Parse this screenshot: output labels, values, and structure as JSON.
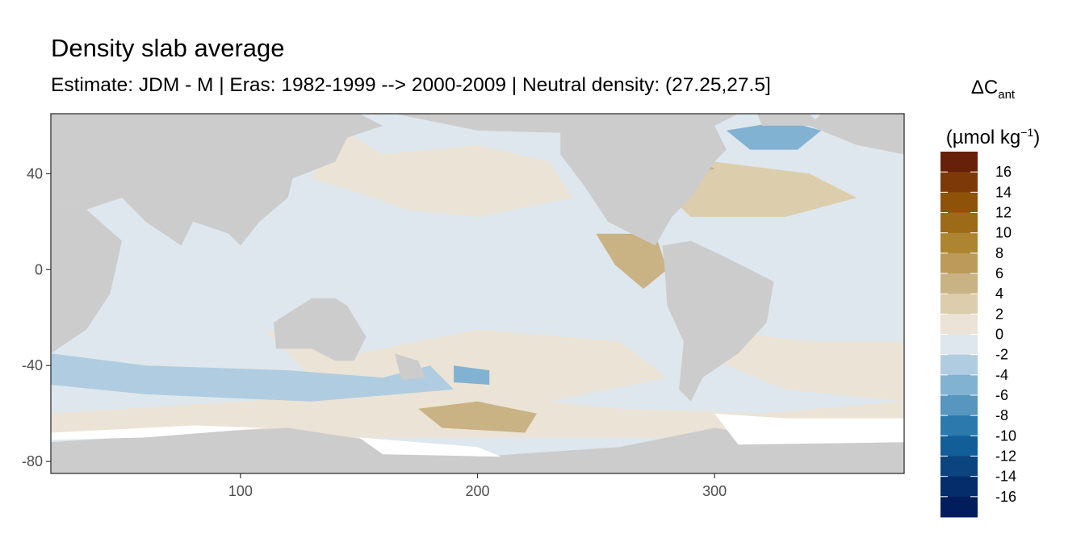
{
  "chart_data": {
    "type": "heatmap",
    "title": "Density slab average",
    "subtitle": "Estimate: JDM - M | Eras: 1982-1999 --> 2000-2009 | Neutral density: (27.25,27.5]",
    "xlabel": "",
    "ylabel": "",
    "xlim": [
      20,
      380
    ],
    "ylim": [
      -85,
      65
    ],
    "x_ticks": [
      "100",
      "200",
      "300"
    ],
    "y_ticks": [
      "40",
      "0",
      "-40",
      "-80"
    ],
    "x_tick_values": [
      100,
      200,
      300
    ],
    "y_tick_values": [
      40,
      0,
      -40,
      -80
    ],
    "grid": false,
    "legend": {
      "position": "right",
      "title": "ΔC",
      "title_sub": "ant",
      "unit_prefix": "(µmol kg",
      "unit_sup": "−1",
      "unit_suffix": ")",
      "labels": [
        "16",
        "14",
        "12",
        "10",
        "8",
        "6",
        "4",
        "2",
        "0",
        "-2",
        "-4",
        "-6",
        "-8",
        "-10",
        "-12",
        "-14",
        "-16"
      ],
      "colors": [
        "#67200a",
        "#7d3a08",
        "#8f5209",
        "#9d6a18",
        "#ad842f",
        "#bb9a5a",
        "#c9b283",
        "#dccdac",
        "#ebe3d5",
        "#dee7ed",
        "#b0cce0",
        "#82b2d1",
        "#5696bf",
        "#2c7aad",
        "#125e98",
        "#0b447f",
        "#052d6c",
        "#021d5c"
      ]
    },
    "land_color": "#cccccc",
    "missing_color": "#ffffff",
    "regions_description_free": true
  }
}
